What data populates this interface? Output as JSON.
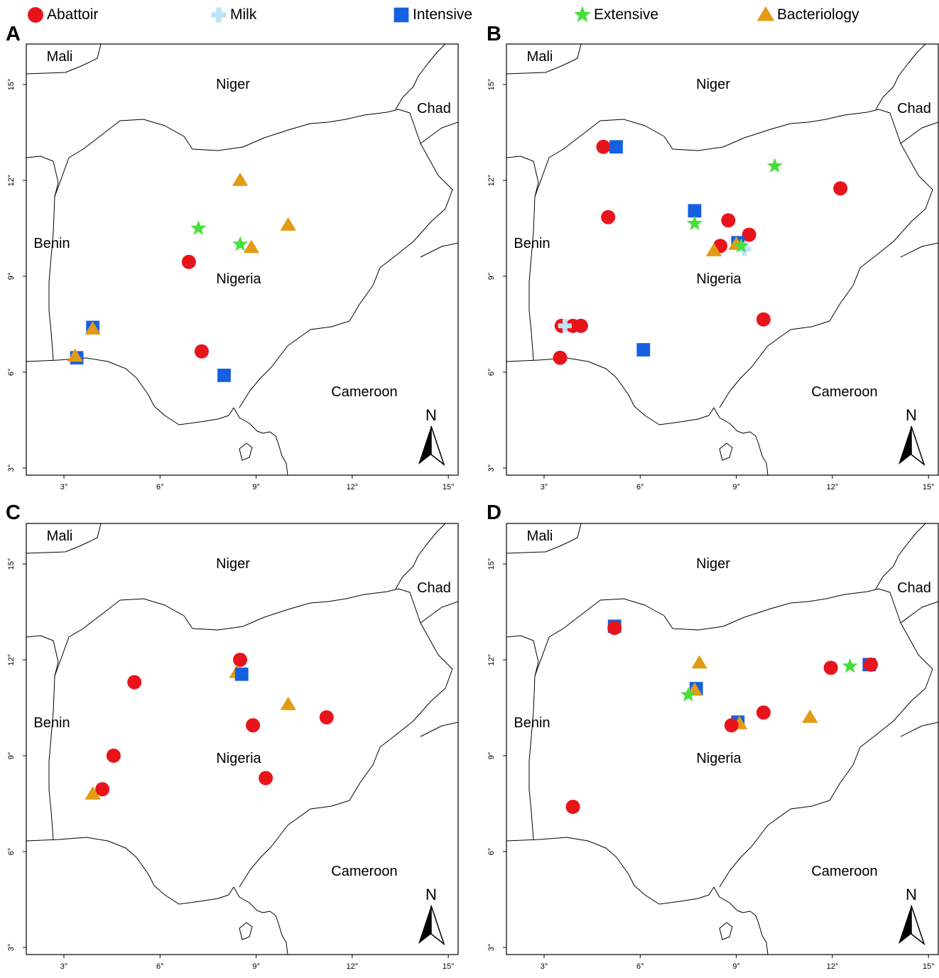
{
  "legend": [
    {
      "label": "Abattoir",
      "symbol": "circle",
      "color": "#e8141c"
    },
    {
      "label": "Milk",
      "symbol": "cross",
      "color": "#bde3f5"
    },
    {
      "label": "Intensive",
      "symbol": "square",
      "color": "#1560e0"
    },
    {
      "label": "Extensive",
      "symbol": "star",
      "color": "#45e03a"
    },
    {
      "label": "Bacteriology",
      "symbol": "triangle",
      "color": "#e39a14"
    }
  ],
  "map": {
    "country_labels": [
      "Mali",
      "Niger",
      "Chad",
      "Benin",
      "Nigeria",
      "Cameroon"
    ],
    "lon_ticks": [
      "3°",
      "6°",
      "9°",
      "12°",
      "15°"
    ],
    "lat_ticks": [
      "3°",
      "6°",
      "9°",
      "12°",
      "15°"
    ],
    "north_label": "N"
  },
  "panels": [
    {
      "letter": "A",
      "points": [
        {
          "type": "triangle",
          "lon": 8.5,
          "lat": 12.0
        },
        {
          "type": "star",
          "lon": 7.2,
          "lat": 10.5
        },
        {
          "type": "star",
          "lon": 8.5,
          "lat": 10.0
        },
        {
          "type": "triangle",
          "lon": 8.85,
          "lat": 9.9
        },
        {
          "type": "triangle",
          "lon": 10.0,
          "lat": 10.6
        },
        {
          "type": "circle",
          "lon": 6.9,
          "lat": 9.45
        },
        {
          "type": "square",
          "lon": 3.9,
          "lat": 7.4
        },
        {
          "type": "triangle",
          "lon": 3.9,
          "lat": 7.35
        },
        {
          "type": "square",
          "lon": 3.4,
          "lat": 6.45
        },
        {
          "type": "triangle",
          "lon": 3.35,
          "lat": 6.5
        },
        {
          "type": "circle",
          "lon": 7.3,
          "lat": 6.65
        },
        {
          "type": "square",
          "lon": 8.0,
          "lat": 5.9
        }
      ]
    },
    {
      "letter": "B",
      "points": [
        {
          "type": "circle",
          "lon": 4.85,
          "lat": 13.05
        },
        {
          "type": "square",
          "lon": 5.25,
          "lat": 13.05
        },
        {
          "type": "star",
          "lon": 10.2,
          "lat": 12.45
        },
        {
          "type": "circle",
          "lon": 12.25,
          "lat": 11.75
        },
        {
          "type": "square",
          "lon": 7.7,
          "lat": 11.05
        },
        {
          "type": "circle",
          "lon": 5.0,
          "lat": 10.85
        },
        {
          "type": "star",
          "lon": 7.7,
          "lat": 10.65
        },
        {
          "type": "circle",
          "lon": 8.75,
          "lat": 10.75
        },
        {
          "type": "circle",
          "lon": 9.4,
          "lat": 10.3
        },
        {
          "type": "square",
          "lon": 9.05,
          "lat": 10.05
        },
        {
          "type": "cross",
          "lon": 9.25,
          "lat": 9.85
        },
        {
          "type": "circle",
          "lon": 8.5,
          "lat": 9.95
        },
        {
          "type": "triangle",
          "lon": 8.3,
          "lat": 9.8
        },
        {
          "type": "triangle",
          "lon": 9.0,
          "lat": 10.0
        },
        {
          "type": "star",
          "lon": 9.15,
          "lat": 9.95
        },
        {
          "type": "circle",
          "lon": 9.85,
          "lat": 7.65
        },
        {
          "type": "circle",
          "lon": 3.55,
          "lat": 7.45
        },
        {
          "type": "circle",
          "lon": 3.9,
          "lat": 7.45
        },
        {
          "type": "circle",
          "lon": 4.15,
          "lat": 7.45
        },
        {
          "type": "cross",
          "lon": 3.65,
          "lat": 7.45
        },
        {
          "type": "circle",
          "lon": 3.5,
          "lat": 6.45
        },
        {
          "type": "square",
          "lon": 6.1,
          "lat": 6.7
        }
      ]
    },
    {
      "letter": "C",
      "points": [
        {
          "type": "circle",
          "lon": 8.5,
          "lat": 12.0
        },
        {
          "type": "triangle",
          "lon": 8.4,
          "lat": 11.6
        },
        {
          "type": "square",
          "lon": 8.55,
          "lat": 11.55
        },
        {
          "type": "circle",
          "lon": 5.2,
          "lat": 11.3
        },
        {
          "type": "triangle",
          "lon": 10.0,
          "lat": 10.6
        },
        {
          "type": "circle",
          "lon": 11.2,
          "lat": 10.2
        },
        {
          "type": "circle",
          "lon": 8.9,
          "lat": 9.95
        },
        {
          "type": "circle",
          "lon": 4.55,
          "lat": 9.0
        },
        {
          "type": "circle",
          "lon": 9.3,
          "lat": 8.3
        },
        {
          "type": "circle",
          "lon": 4.2,
          "lat": 7.95
        },
        {
          "type": "triangle",
          "lon": 3.9,
          "lat": 7.8
        }
      ]
    },
    {
      "letter": "D",
      "points": [
        {
          "type": "square",
          "lon": 5.2,
          "lat": 13.05
        },
        {
          "type": "circle",
          "lon": 5.2,
          "lat": 13.0
        },
        {
          "type": "triangle",
          "lon": 7.85,
          "lat": 11.9
        },
        {
          "type": "circle",
          "lon": 11.95,
          "lat": 11.75
        },
        {
          "type": "star",
          "lon": 12.55,
          "lat": 11.8
        },
        {
          "type": "square",
          "lon": 13.15,
          "lat": 11.85
        },
        {
          "type": "circle",
          "lon": 13.2,
          "lat": 11.85
        },
        {
          "type": "square",
          "lon": 7.75,
          "lat": 11.1
        },
        {
          "type": "triangle",
          "lon": 7.7,
          "lat": 11.05
        },
        {
          "type": "star",
          "lon": 7.5,
          "lat": 10.9
        },
        {
          "type": "circle",
          "lon": 9.85,
          "lat": 10.35
        },
        {
          "type": "triangle",
          "lon": 11.3,
          "lat": 10.2
        },
        {
          "type": "square",
          "lon": 9.05,
          "lat": 10.05
        },
        {
          "type": "triangle",
          "lon": 9.1,
          "lat": 10.0
        },
        {
          "type": "circle",
          "lon": 8.85,
          "lat": 9.95
        },
        {
          "type": "circle",
          "lon": 3.9,
          "lat": 7.4
        }
      ]
    }
  ]
}
